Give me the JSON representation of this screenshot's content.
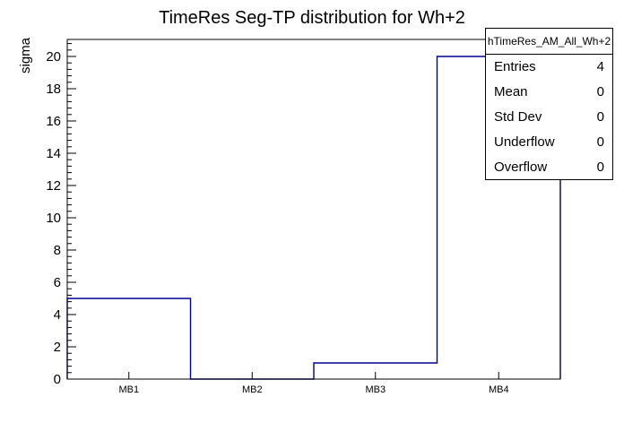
{
  "window": {
    "background_color": "#ffffff"
  },
  "chart_data": {
    "type": "bar",
    "style": "root-step-histogram",
    "title": "TimeRes Seg-TP distribution for Wh+2",
    "xlabel": "",
    "ylabel": "sigma",
    "categories": [
      "MB1",
      "MB2",
      "MB3",
      "MB4"
    ],
    "values": [
      5,
      0,
      1,
      20
    ],
    "ylim": [
      0,
      21
    ],
    "y_major_step": 2,
    "y_minor_step": 0.4,
    "y_tick_labels": [
      "0",
      "2",
      "4",
      "6",
      "8",
      "10",
      "12",
      "14",
      "16",
      "18",
      "20"
    ],
    "grid": "off",
    "line_color": "#00008b",
    "frame_color": "#000000",
    "legend_position": "top-right"
  },
  "stats_box": {
    "header": "hTimeRes_AM_All_Wh+2",
    "rows": [
      {
        "label": "Entries",
        "value": "4"
      },
      {
        "label": "Mean",
        "value": "0"
      },
      {
        "label": "Std Dev",
        "value": "0"
      },
      {
        "label": "Underflow",
        "value": "0"
      },
      {
        "label": "Overflow",
        "value": "0"
      }
    ]
  }
}
